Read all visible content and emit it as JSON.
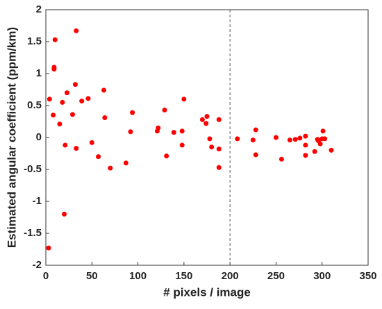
{
  "chart_data": {
    "type": "scatter",
    "xlabel": "# pixels / image",
    "ylabel": "Estimated angular coefficient (ppm/km)",
    "x": [
      3,
      4,
      8,
      9,
      9,
      10,
      15,
      18,
      20,
      21,
      23,
      29,
      32,
      33,
      33,
      39,
      46,
      50,
      57,
      63,
      64,
      70,
      87,
      92,
      94,
      121,
      122,
      129,
      131,
      139,
      148,
      148,
      150,
      170,
      174,
      175,
      178,
      180,
      188,
      188,
      188,
      208,
      225,
      228,
      228,
      250,
      256,
      265,
      271,
      276,
      282,
      282,
      282,
      292,
      295,
      296,
      298,
      300,
      301,
      303,
      310
    ],
    "values": [
      -1.73,
      0.6,
      0.35,
      1.07,
      1.1,
      1.53,
      0.21,
      0.55,
      -1.2,
      -0.12,
      0.7,
      0.36,
      0.83,
      -0.17,
      1.67,
      0.57,
      0.61,
      -0.08,
      -0.3,
      0.74,
      0.31,
      -0.48,
      -0.4,
      0.09,
      0.39,
      0.1,
      0.15,
      0.43,
      -0.29,
      0.08,
      -0.12,
      0.1,
      0.6,
      0.28,
      0.22,
      0.33,
      -0.02,
      -0.15,
      0.28,
      -0.18,
      -0.47,
      -0.02,
      -0.04,
      0.12,
      -0.27,
      0.0,
      -0.34,
      -0.04,
      -0.03,
      -0.01,
      -0.12,
      -0.28,
      0.02,
      -0.22,
      -0.03,
      -0.05,
      -0.1,
      -0.02,
      0.1,
      -0.02,
      -0.2
    ],
    "color": "#ff0000",
    "xlim": [
      0,
      350
    ],
    "xticks": [
      0,
      50,
      100,
      150,
      200,
      250,
      300,
      350
    ],
    "ylim": [
      -2,
      2
    ],
    "yticks": [
      -2,
      -1.5,
      -1,
      -0.5,
      0,
      0.5,
      1,
      1.5,
      2
    ],
    "vline": 200,
    "grid": false
  }
}
